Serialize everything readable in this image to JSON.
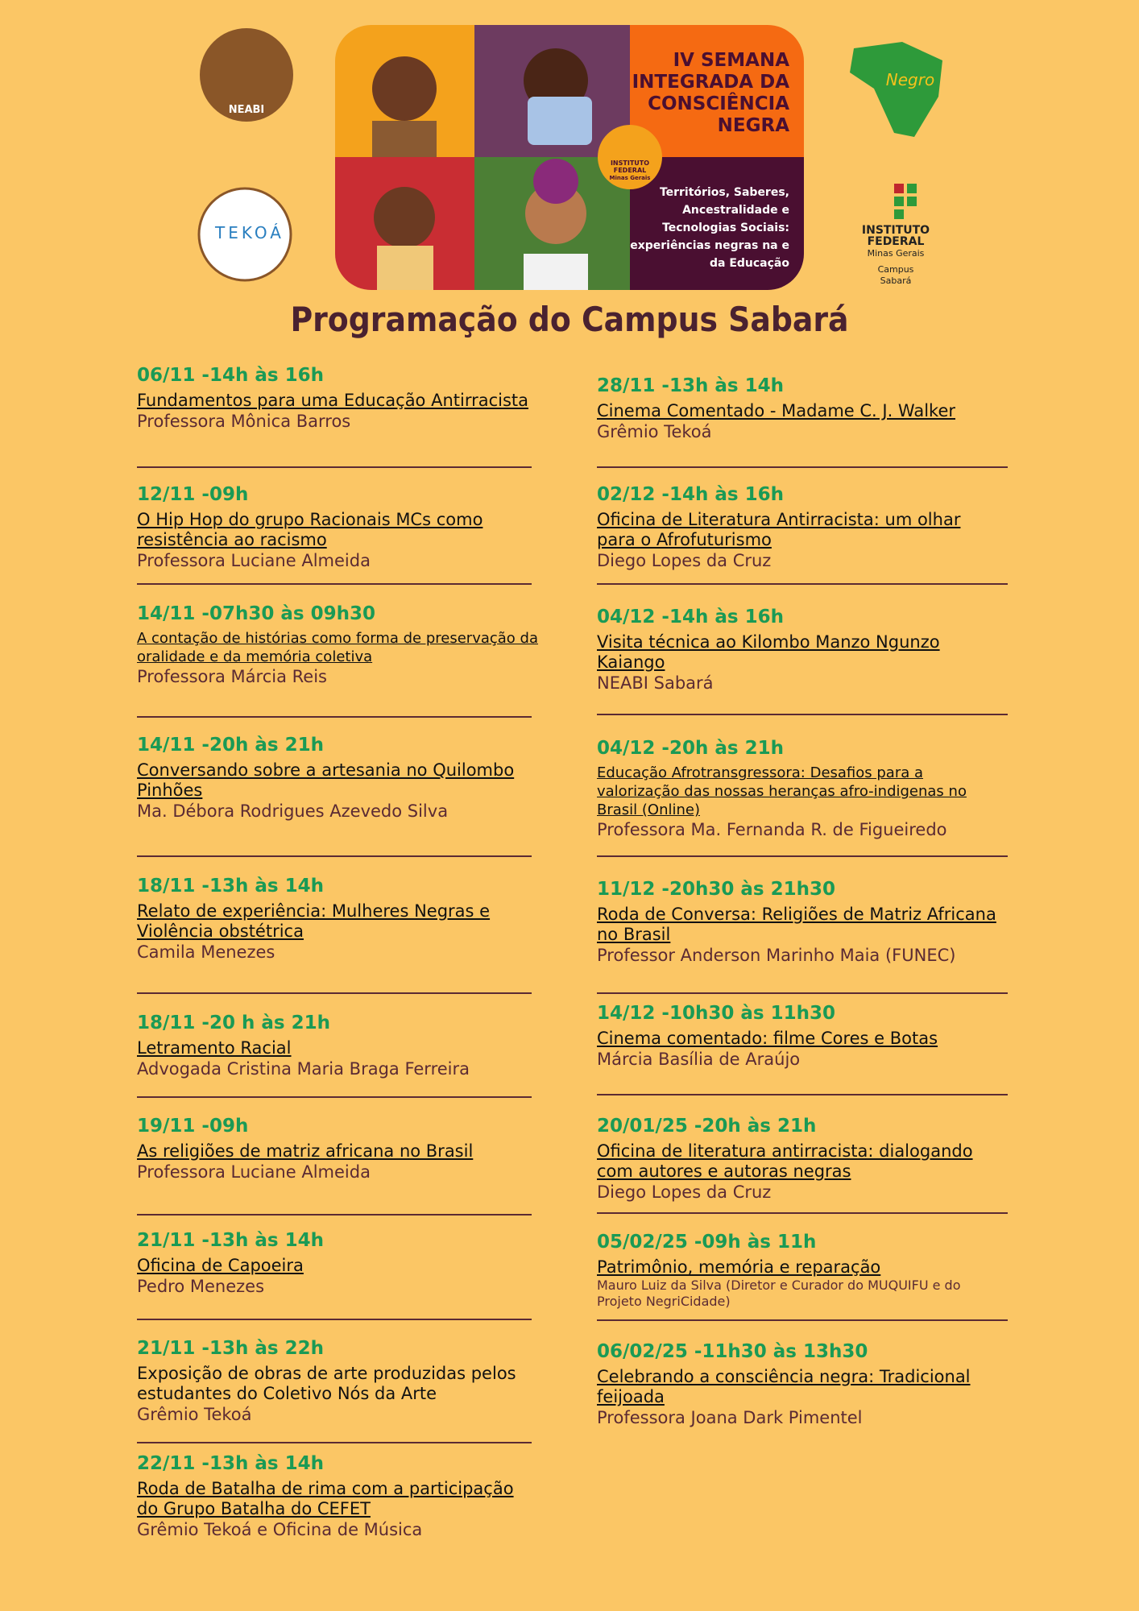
{
  "banner": {
    "heading": [
      "IV SEMANA",
      "INTEGRADA DA",
      "CONSCIÊNCIA",
      "NEGRA"
    ],
    "tagline": [
      "Territórios, Saberes,",
      "Ancestralidade e",
      "Tecnologias Sociais:",
      "experiências negras na e",
      "da Educação"
    ],
    "badge": [
      "INSTITUTO",
      "FEDERAL",
      "Minas Gerais"
    ]
  },
  "logos": {
    "neabi": "NEABI",
    "tekoa": "TEKOÁ",
    "negro": "Negro",
    "if": [
      "INSTITUTO",
      "FEDERAL",
      "Minas Gerais",
      "Campus",
      "Sabará"
    ]
  },
  "title": "Programação do Campus Sabará",
  "left": [
    {
      "date": "06/11 -14h às 16h",
      "title": "Fundamentos para uma Educação Antirracista",
      "speaker": "Professora Mônica Barros"
    },
    {
      "date": "12/11 -09h",
      "title": "O Hip Hop do grupo Racionais MCs como resistência ao racismo",
      "speaker": "Professora Luciane Almeida"
    },
    {
      "date": "14/11 -07h30 às 09h30",
      "title": "A contação de histórias como forma de preservação da oralidade e da memória coletiva",
      "speaker": "Professora Márcia Reis"
    },
    {
      "date": "14/11 -20h às 21h",
      "title": "Conversando sobre a artesania no Quilombo Pinhões",
      "speaker": "Ma. Débora Rodrigues Azevedo Silva"
    },
    {
      "date": "18/11 -13h às 14h",
      "title": "Relato de experiência: Mulheres Negras e Violência obstétrica",
      "speaker": "Camila Menezes"
    },
    {
      "date": "18/11 -20 h às 21h",
      "title": "Letramento Racial",
      "speaker": "Advogada Cristina Maria Braga Ferreira"
    },
    {
      "date": "19/11 -09h",
      "title": "As religiões de matriz africana no Brasil",
      "speaker": "Professora Luciane Almeida"
    },
    {
      "date": "21/11 -13h às 14h",
      "title": "Oficina de Capoeira",
      "speaker": "Pedro Menezes"
    },
    {
      "date": "21/11 -13h às 22h",
      "title": "Exposição de obras de arte produzidas pelos estudantes do Coletivo Nós da Arte",
      "speaker": "Grêmio Tekoá"
    },
    {
      "date": "22/11 -13h às 14h",
      "title": "Roda de Batalha de rima com a participação do Grupo Batalha do CEFET",
      "speaker": "Grêmio Tekoá e Oficina de Música"
    }
  ],
  "right": [
    {
      "date": "28/11 -13h às 14h",
      "title": "Cinema Comentado - Madame C. J. Walker",
      "speaker": "Grêmio Tekoá"
    },
    {
      "date": "02/12 -14h às 16h",
      "title": "Oficina de Literatura Antirracista: um olhar para o Afrofuturismo",
      "speaker": "Diego Lopes da Cruz"
    },
    {
      "date": "04/12 -14h às 16h",
      "title": "Visita técnica ao Kilombo Manzo Ngunzo Kaiango",
      "speaker": "NEABI Sabará"
    },
    {
      "date": "04/12 -20h às 21h",
      "title": "Educação Afrotransgressora: Desafios para a valorização das nossas heranças afro-indigenas no Brasil (Online)",
      "speaker": "Professora Ma. Fernanda R. de Figueiredo"
    },
    {
      "date": "11/12 -20h30 às 21h30",
      "title": "Roda de Conversa: Religiões de Matriz Africana no Brasil",
      "speaker": "Professor Anderson Marinho Maia (FUNEC)"
    },
    {
      "date": "14/12 -10h30 às 11h30",
      "title": "Cinema comentado: filme Cores e Botas",
      "speaker": "Márcia Basília de Araújo"
    },
    {
      "date": "20/01/25 -20h às 21h",
      "title": "Oficina de literatura antirracista: dialogando com autores e autoras negras",
      "speaker": "Diego Lopes da Cruz"
    },
    {
      "date": "05/02/25 -09h às 11h",
      "title": "Patrimônio, memória e reparação",
      "speaker": "Mauro Luiz da Silva (Diretor e Curador do MUQUIFU e do Projeto NegriCidade)"
    },
    {
      "date": "06/02/25 -11h30 às 13h30",
      "title": "Celebrando a consciência negra: Tradicional feijoada",
      "speaker": "Professora Joana Dark Pimentel"
    }
  ]
}
